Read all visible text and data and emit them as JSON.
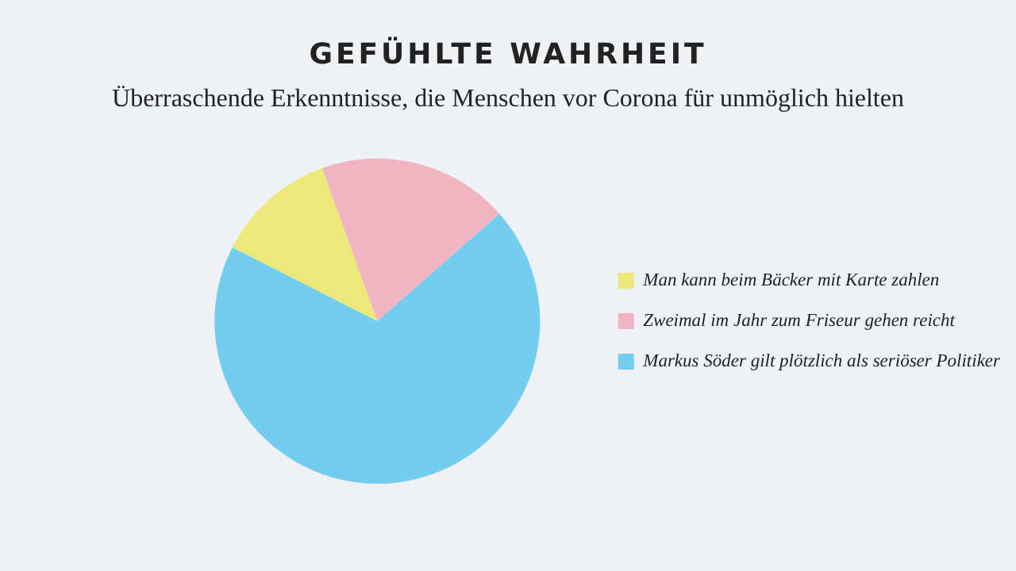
{
  "chart_data": {
    "type": "pie",
    "title": "GEFÜHLTE WAHRHEIT",
    "subtitle": "Überraschende Erkenntnisse, die Menschen vor Corona für unmöglich hielten",
    "categories": [
      "Man kann beim Bäcker mit Karte zahlen",
      "Zweimal im Jahr zum Friseur gehen reicht",
      "Markus Söder gilt plötzlich als seriöser Politiker"
    ],
    "values": [
      12,
      19,
      69
    ],
    "colors": [
      "#ece97a",
      "#f0b5c0",
      "#72cdef"
    ],
    "legend": "right"
  }
}
